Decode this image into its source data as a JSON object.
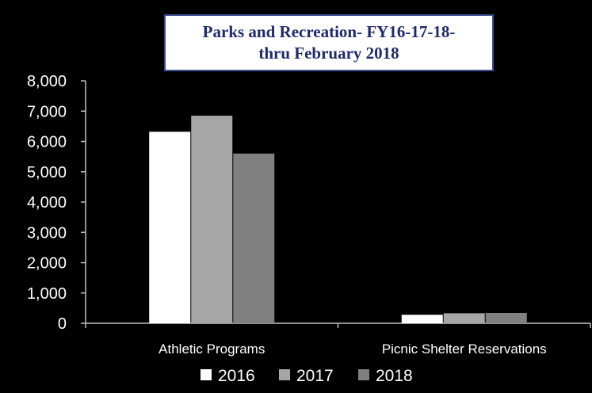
{
  "chart_data": {
    "type": "bar",
    "title": "Parks and Recreation- FY16-17-18-\nthru February 2018",
    "categories": [
      "Athletic Programs",
      "Picnic Shelter Reservations"
    ],
    "series": [
      {
        "name": "2016",
        "values": [
          6320,
          280
        ],
        "color": "#ffffff"
      },
      {
        "name": "2017",
        "values": [
          6850,
          330
        ],
        "color": "#a6a6a6"
      },
      {
        "name": "2018",
        "values": [
          5600,
          340
        ],
        "color": "#808080"
      }
    ],
    "ylim": [
      0,
      8000
    ],
    "yticks": [
      "0",
      "1,000",
      "2,000",
      "3,000",
      "4,000",
      "5,000",
      "6,000",
      "7,000",
      "8,000"
    ],
    "grid": false,
    "legend": "bottom",
    "axis_color": "#bfbfbf"
  }
}
